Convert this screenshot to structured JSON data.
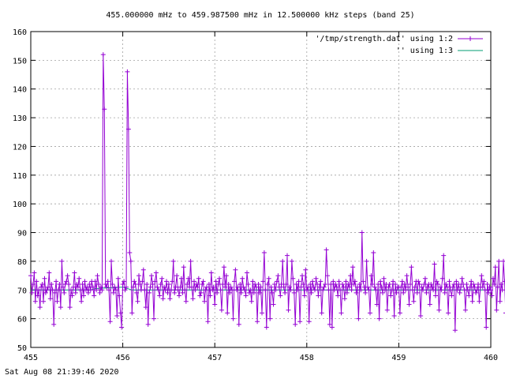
{
  "chart_data": {
    "type": "line",
    "title": "455.000000 mHz to 459.987500 mHz in 12.500000 kHz steps (band 25)",
    "xlabel": "",
    "ylabel": "",
    "xlim": [
      455,
      460
    ],
    "ylim": [
      50,
      160
    ],
    "x_ticks": [
      "455",
      "456",
      "457",
      "458",
      "459",
      "460"
    ],
    "y_ticks": [
      "50",
      "60",
      "70",
      "80",
      "90",
      "100",
      "110",
      "120",
      "130",
      "140",
      "150",
      "160"
    ],
    "grid": true,
    "legend_position": "top-right",
    "colors": {
      "series1": "#9400d3",
      "series2": "#009e73"
    },
    "series": [
      {
        "name": "'/tmp/strength.dat' using 1:2",
        "style": "linespoints",
        "x_start": 455.0,
        "x_step": 0.0125,
        "values": [
          75,
          69,
          72,
          76,
          66,
          73,
          68,
          70,
          64,
          71,
          72,
          66,
          74,
          69,
          70,
          71,
          76,
          67,
          72,
          70,
          58,
          69,
          73,
          66,
          70,
          72,
          64,
          80,
          71,
          69,
          72,
          73,
          75,
          72,
          64,
          70,
          68,
          71,
          76,
          69,
          72,
          71,
          74,
          70,
          66,
          72,
          68,
          73,
          70,
          71,
          69,
          72,
          70,
          73,
          71,
          68,
          73,
          70,
          75,
          72,
          69,
          71,
          70,
          152,
          133,
          72,
          71,
          73,
          70,
          59,
          80,
          72,
          69,
          71,
          70,
          61,
          74,
          68,
          62,
          57,
          72,
          73,
          70,
          71,
          146,
          126,
          83,
          80,
          62,
          71,
          73,
          72,
          69,
          66,
          75,
          72,
          70,
          73,
          77,
          70,
          64,
          72,
          58,
          69,
          71,
          75,
          72,
          60,
          73,
          76,
          71,
          70,
          68,
          72,
          74,
          67,
          71,
          70,
          73,
          69,
          72,
          67,
          70,
          73,
          80,
          69,
          71,
          75,
          70,
          68,
          71,
          74,
          69,
          78,
          70,
          66,
          72,
          74,
          71,
          80,
          71,
          67,
          73,
          70,
          72,
          71,
          74,
          68,
          69,
          72,
          73,
          66,
          70,
          71,
          59,
          72,
          68,
          76,
          70,
          71,
          65,
          73,
          69,
          72,
          74,
          70,
          63,
          72,
          78,
          71,
          75,
          62,
          72,
          69,
          71,
          70,
          60,
          73,
          77,
          70,
          71,
          58,
          72,
          69,
          74,
          71,
          70,
          68,
          76,
          72,
          69,
          70,
          66,
          73,
          69,
          72,
          71,
          59,
          72,
          69,
          71,
          62,
          73,
          83,
          70,
          57,
          72,
          74,
          60,
          71,
          69,
          65,
          72,
          70,
          73,
          75,
          71,
          68,
          72,
          80,
          71,
          69,
          72,
          82,
          63,
          71,
          70,
          80,
          74,
          69,
          58,
          72,
          70,
          73,
          59,
          71,
          75,
          72,
          68,
          77,
          70,
          71,
          59,
          72,
          69,
          73,
          71,
          70,
          74,
          72,
          68,
          71,
          73,
          62,
          70,
          71,
          72,
          84,
          75,
          70,
          58,
          72,
          57,
          73,
          70,
          72,
          71,
          68,
          73,
          70,
          62,
          72,
          71,
          67,
          73,
          69,
          72,
          71,
          75,
          70,
          78,
          72,
          73,
          69,
          71,
          60,
          72,
          70,
          90,
          73,
          71,
          69,
          80,
          71,
          70,
          62,
          75,
          72,
          83,
          71,
          70,
          65,
          72,
          60,
          73,
          71,
          69,
          74,
          70,
          72,
          63,
          71,
          72,
          68,
          70,
          73,
          61,
          72,
          69,
          71,
          71,
          62,
          71,
          73,
          69,
          72,
          70,
          75,
          71,
          65,
          72,
          78,
          70,
          66,
          71,
          73,
          69,
          73,
          72,
          61,
          71,
          70,
          72,
          74,
          69,
          71,
          72,
          65,
          72,
          71,
          70,
          79,
          68,
          73,
          72,
          63,
          71,
          70,
          74,
          82,
          69,
          72,
          71,
          62,
          73,
          70,
          68,
          71,
          72,
          56,
          73,
          70,
          72,
          69,
          71,
          74,
          72,
          70,
          63,
          72,
          70,
          68,
          71,
          73,
          66,
          72,
          71,
          69,
          70,
          72,
          66,
          71,
          75,
          71,
          73,
          70,
          57,
          72,
          69,
          71,
          70,
          68,
          74,
          72,
          78,
          63,
          71,
          80,
          66,
          72,
          70,
          80,
          73,
          62,
          70,
          71
        ]
      },
      {
        "name": "'' using 1:3",
        "style": "lines",
        "x": [
          455,
          455.65,
          455.7,
          456.0,
          456.1,
          460
        ],
        "values": [
          70,
          70,
          70.5,
          71,
          70,
          70
        ]
      }
    ]
  },
  "footer": {
    "timestamp": "Sat Aug 08 21:39:46 2020"
  }
}
